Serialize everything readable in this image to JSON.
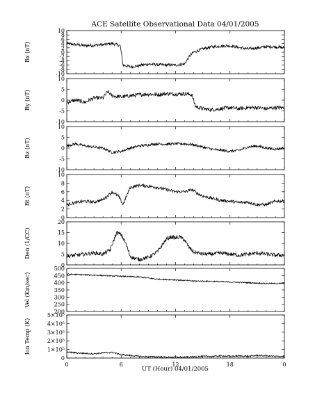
{
  "title": "ACE Satellite Observational Data   04/01/2005",
  "xlabel": "UT (Hour)  04/01/2005",
  "chart_data": {
    "type": "line",
    "title": "ACE Satellite Observational Data   04/01/2005",
    "xlabel": "UT (Hour)  04/01/2005",
    "xlim": [
      0,
      24
    ],
    "x_ticks": [
      "0",
      "6",
      "12",
      "18",
      "0"
    ],
    "x_tick_values": [
      0,
      6,
      12,
      18,
      24
    ],
    "line_color": "#000000",
    "panels": [
      {
        "ylabel": "Bx (nT)",
        "ylim": [
          -10,
          10
        ],
        "ytick_values": [
          -10,
          -8,
          -6,
          -4,
          -2,
          0,
          2,
          4,
          6,
          8,
          10
        ],
        "ytick_labels": [
          "-10",
          "-8",
          "-6",
          "-4",
          "-2",
          "0",
          "2",
          "4",
          "6",
          "8",
          "10"
        ],
        "noise": 0.7,
        "x": [
          0,
          1,
          2,
          3,
          4,
          5,
          5.9,
          6.2,
          7,
          8,
          9,
          10,
          11,
          12,
          13,
          13.5,
          14,
          15,
          16,
          17,
          18,
          19,
          20,
          21,
          22,
          23,
          24
        ],
        "y": [
          4,
          3.5,
          3,
          3.2,
          3.5,
          4,
          3,
          -6,
          -6.8,
          -6.3,
          -5.5,
          -5.8,
          -6,
          -6,
          -5.5,
          -2,
          0,
          1.5,
          2.5,
          2.8,
          3,
          2.2,
          1.5,
          2,
          2.5,
          2.5,
          2
        ]
      },
      {
        "ylabel": "By (nT)",
        "ylim": [
          -10,
          10
        ],
        "ytick_values": [
          -10,
          -5,
          0,
          5,
          10
        ],
        "ytick_labels": [
          "-10",
          "-5",
          "0",
          "5",
          "10"
        ],
        "noise": 0.9,
        "x": [
          0,
          1,
          2,
          3,
          4,
          4.5,
          5,
          6,
          7,
          8,
          9,
          10,
          11,
          12,
          13,
          13.8,
          14.2,
          15,
          16,
          17,
          18,
          19,
          20,
          21,
          22,
          23,
          24
        ],
        "y": [
          -1,
          0,
          -1,
          1,
          1,
          4,
          2,
          1.5,
          2,
          2.5,
          2.8,
          2.5,
          3,
          2.8,
          3,
          2.5,
          -3,
          -4,
          -4.5,
          -4,
          -3.5,
          -4,
          -3.5,
          -3.5,
          -4,
          -3.5,
          -3.5
        ]
      },
      {
        "ylabel": "Bz (nT)",
        "ylim": [
          -10,
          10
        ],
        "ytick_values": [
          -10,
          -5,
          0,
          5,
          10
        ],
        "ytick_labels": [
          "-10",
          "-5",
          "0",
          "5",
          "10"
        ],
        "noise": 0.6,
        "x": [
          0,
          1,
          2,
          3,
          4,
          5,
          6,
          7,
          8,
          9,
          10,
          11,
          12,
          13,
          14,
          15,
          16,
          17,
          18,
          19,
          20,
          21,
          22,
          23,
          24
        ],
        "y": [
          1,
          2,
          1,
          0.5,
          0,
          -2,
          -1.5,
          0,
          1,
          1.5,
          2,
          1.8,
          2,
          2,
          1.5,
          0.5,
          -0.5,
          -1,
          -1.5,
          -1,
          0.5,
          1,
          0,
          -0.5,
          0
        ]
      },
      {
        "ylabel": "Bt (nT)",
        "ylim": [
          0,
          10
        ],
        "ytick_values": [
          0,
          2,
          4,
          6,
          8,
          10
        ],
        "ytick_labels": [
          "0",
          "2",
          "4",
          "6",
          "8",
          "10"
        ],
        "noise": 0.35,
        "x": [
          0,
          1,
          2,
          3,
          4,
          4.5,
          5,
          5.7,
          6.2,
          7,
          8,
          9,
          10,
          11,
          12,
          13,
          13.8,
          14.5,
          15,
          16,
          17,
          18,
          19,
          20,
          21,
          22,
          23,
          24
        ],
        "y": [
          3,
          3.5,
          3.8,
          3.6,
          4.2,
          5,
          6,
          5,
          3,
          7,
          7.5,
          7.3,
          7,
          6.5,
          6,
          6,
          6.5,
          5.5,
          5,
          4.5,
          4,
          3.8,
          3.5,
          3.6,
          3,
          3,
          3.8,
          3.8
        ]
      },
      {
        "ylabel": "Den (1/CC)",
        "ylim": [
          0,
          20
        ],
        "ytick_values": [
          0,
          5,
          10,
          15,
          20
        ],
        "ytick_labels": [
          "0",
          "5",
          "10",
          "15",
          "20"
        ],
        "noise": 0.9,
        "x": [
          0,
          1,
          2,
          3,
          4,
          4.8,
          5.5,
          6,
          6.5,
          7,
          7.5,
          8,
          9,
          10,
          10.5,
          11,
          11.5,
          12,
          12.5,
          13,
          13.5,
          14,
          15,
          16,
          17,
          18,
          19,
          20,
          21,
          22,
          23,
          24
        ],
        "y": [
          4,
          4.5,
          5,
          5.5,
          5,
          7,
          15,
          14,
          10,
          4,
          3,
          2.5,
          3.5,
          6,
          9,
          12,
          13,
          12.5,
          13,
          11.5,
          8,
          6,
          5,
          5,
          5.5,
          5,
          4.5,
          5,
          5.5,
          5,
          4.5,
          4.5
        ]
      },
      {
        "ylabel": "Vel (Km/sec)",
        "ylim": [
          200,
          500
        ],
        "ytick_values": [
          200,
          250,
          300,
          350,
          400,
          450,
          500
        ],
        "ytick_labels": [
          "200",
          "250",
          "300",
          "350",
          "400",
          "450",
          "500"
        ],
        "noise": 4,
        "x": [
          0,
          2,
          4,
          6,
          8,
          10,
          12,
          14,
          16,
          18,
          20,
          22,
          24
        ],
        "y": [
          460,
          455,
          450,
          445,
          440,
          425,
          420,
          412,
          410,
          405,
          400,
          395,
          395
        ]
      },
      {
        "ylabel": "Ion Temp (K)",
        "ylim": [
          0,
          500000
        ],
        "ytick_values": [
          0,
          100000,
          200000,
          300000,
          400000,
          500000
        ],
        "ytick_labels": [
          "0",
          "1×10⁵",
          "2×10⁵",
          "3×10⁵",
          "4×10⁵",
          "5×10⁵"
        ],
        "noise": 8000,
        "x": [
          0,
          1,
          2,
          3,
          4,
          5,
          6,
          7,
          8,
          9,
          10,
          11,
          12,
          13,
          14,
          15,
          16,
          17,
          18,
          19,
          20,
          21,
          22,
          23,
          24
        ],
        "y": [
          70000,
          60000,
          55000,
          50000,
          60000,
          65000,
          40000,
          30000,
          20000,
          15000,
          15000,
          10000,
          10000,
          10000,
          15000,
          20000,
          20000,
          25000,
          20000,
          25000,
          20000,
          30000,
          25000,
          20000,
          20000
        ]
      }
    ]
  }
}
